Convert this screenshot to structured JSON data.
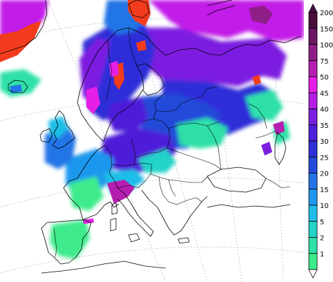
{
  "legend": {
    "levels": [
      {
        "label": "200",
        "color": "#4a0f3e"
      },
      {
        "label": "150",
        "color": "#6b1761"
      },
      {
        "label": "100",
        "color": "#8f1f87"
      },
      {
        "label": "75",
        "color": "#b51fb0"
      },
      {
        "label": "50",
        "color": "#e61fe6"
      },
      {
        "label": "45",
        "color": "#b41fe4"
      },
      {
        "label": "40",
        "color": "#7c1fe0"
      },
      {
        "label": "35",
        "color": "#4e1fd9"
      },
      {
        "label": "30",
        "color": "#2f2fd8"
      },
      {
        "label": "25",
        "color": "#244ad8"
      },
      {
        "label": "20",
        "color": "#2474e6"
      },
      {
        "label": "15",
        "color": "#1f97ee"
      },
      {
        "label": "10",
        "color": "#1fbde8"
      },
      {
        "label": "5",
        "color": "#22d3c8"
      },
      {
        "label": "2",
        "color": "#2ee0a8"
      },
      {
        "label": "1",
        "color": "#3ceb8c"
      }
    ],
    "outline_color": "#000000"
  },
  "map": {
    "sea_color": "#ffffff",
    "coast_color": "#000000",
    "extreme_color": "#f23c1d"
  }
}
